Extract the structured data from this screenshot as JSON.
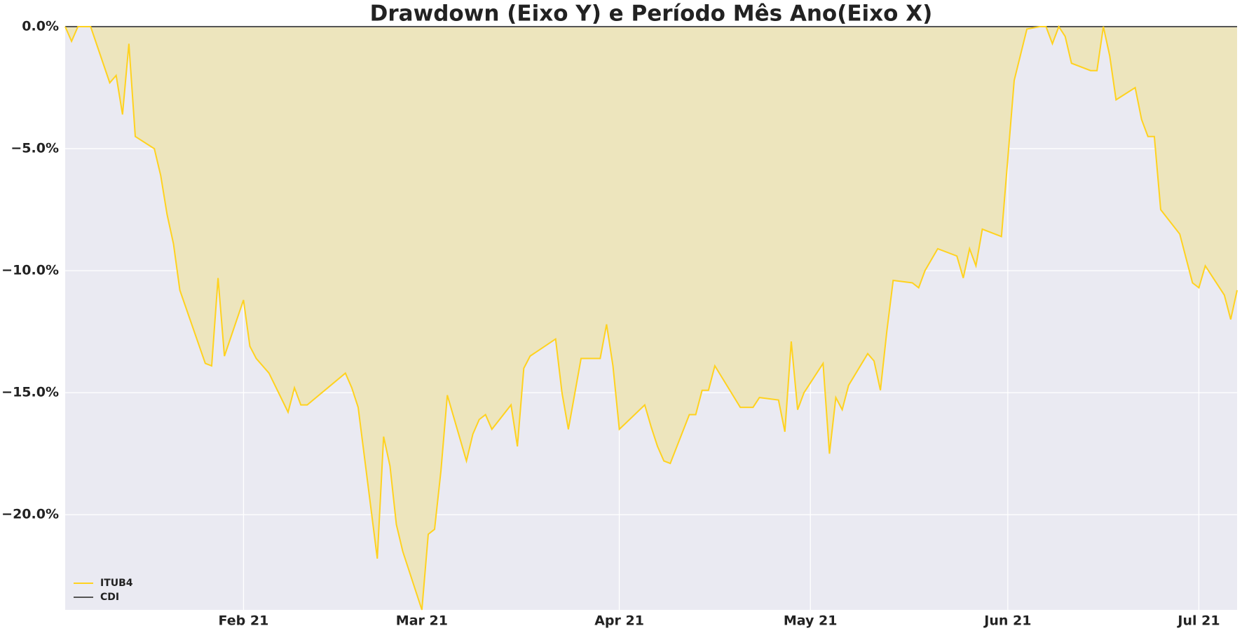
{
  "chart_data": {
    "type": "line",
    "title": "Drawdown (Eixo Y) e Período Mês Ano(Eixo X)",
    "x": [
      4,
      5,
      6,
      8,
      11,
      12,
      13,
      14,
      15,
      18,
      19,
      20,
      21,
      22,
      26,
      27,
      28,
      29,
      32,
      33,
      34,
      36,
      39,
      40,
      41,
      42,
      48,
      49,
      50,
      53,
      54,
      55,
      56,
      57,
      60,
      61,
      62,
      63,
      64,
      67,
      68,
      69,
      70,
      71,
      74,
      75,
      76,
      77,
      81,
      82,
      83,
      85,
      88,
      89,
      90,
      91,
      95,
      96,
      97,
      98,
      99,
      102,
      103,
      104,
      105,
      106,
      110,
      112,
      113,
      116,
      117,
      118,
      119,
      120,
      123,
      124,
      125,
      126,
      127,
      130,
      131,
      132,
      133,
      134,
      137,
      138,
      139,
      141,
      144,
      145,
      146,
      147,
      148,
      151,
      153,
      155,
      157,
      158,
      159,
      160,
      161,
      162,
      165,
      166,
      167,
      168,
      169,
      172,
      173,
      174,
      175,
      176,
      179,
      180,
      181,
      182,
      183,
      186,
      187,
      188
    ],
    "series": [
      {
        "name": "ITUB4",
        "color": "#ffd21f",
        "fill": "#ede5bd",
        "values": [
          0,
          -0.6,
          0,
          0,
          -2.3,
          -2,
          -3.6,
          -0.7,
          -4.5,
          -5,
          -6.1,
          -7.7,
          -8.9,
          -10.8,
          -13.8,
          -13.9,
          -10.3,
          -13.5,
          -11.2,
          -13.1,
          -13.6,
          -14.2,
          -15.8,
          -14.8,
          -15.5,
          -15.5,
          -14.2,
          -14.8,
          -15.6,
          -21.8,
          -16.8,
          -18,
          -20.4,
          -21.5,
          -23.9,
          -20.8,
          -20.6,
          -18.2,
          -15.1,
          -17.8,
          -16.7,
          -16.1,
          -15.9,
          -16.5,
          -15.5,
          -17.2,
          -14,
          -13.5,
          -12.8,
          -15,
          -16.5,
          -13.6,
          -13.6,
          -12.2,
          -13.9,
          -16.5,
          -15.5,
          -16.4,
          -17.2,
          -17.8,
          -17.9,
          -15.9,
          -15.9,
          -14.9,
          -14.9,
          -13.9,
          -15.6,
          -15.6,
          -15.2,
          -15.3,
          -16.6,
          -12.9,
          -15.7,
          -15,
          -13.8,
          -17.5,
          -15.2,
          -15.7,
          -14.7,
          -13.4,
          -13.7,
          -14.9,
          -12.5,
          -10.4,
          -10.5,
          -10.7,
          -10,
          -9.1,
          -9.4,
          -10.3,
          -9.1,
          -9.8,
          -8.3,
          -8.6,
          -2.2,
          -0.1,
          0,
          0,
          -0.7,
          0,
          -0.4,
          -1.5,
          -1.8,
          -1.8,
          0,
          -1.2,
          -3,
          -2.5,
          -3.8,
          -4.5,
          -4.5,
          -7.5,
          -8.5,
          -9.5,
          -10.5,
          -10.7,
          -9.8,
          -11,
          -12,
          -10.8
        ]
      },
      {
        "name": "CDI",
        "color": "#555555",
        "values": [
          0,
          0,
          0,
          0,
          0,
          0,
          0,
          0,
          0,
          0,
          0,
          0,
          0,
          0,
          0,
          0,
          0,
          0,
          0,
          0,
          0,
          0,
          0,
          0,
          0,
          0,
          0,
          0,
          0,
          0,
          0,
          0,
          0,
          0,
          0,
          0,
          0,
          0,
          0,
          0,
          0,
          0,
          0,
          0,
          0,
          0,
          0,
          0,
          0,
          0,
          0,
          0,
          0,
          0,
          0,
          0,
          0,
          0,
          0,
          0,
          0,
          0,
          0,
          0,
          0,
          0,
          0,
          0,
          0,
          0,
          0,
          0,
          0,
          0,
          0,
          0,
          0,
          0,
          0,
          0,
          0,
          0,
          0,
          0,
          0,
          0,
          0,
          0,
          0,
          0,
          0,
          0,
          0,
          0,
          0,
          0,
          0,
          0,
          0,
          0,
          0,
          0,
          0,
          0,
          0,
          0,
          0,
          0,
          0,
          0,
          0,
          0,
          0,
          0,
          0,
          0,
          0,
          0,
          0,
          0
        ]
      }
    ],
    "xlim": [
      4,
      188
    ],
    "xticks": [
      {
        "value": 32,
        "label": "Feb 21"
      },
      {
        "value": 60,
        "label": "Mar 21"
      },
      {
        "value": 91,
        "label": "Apr 21"
      },
      {
        "value": 121,
        "label": "May 21"
      },
      {
        "value": 152,
        "label": "Jun 21"
      },
      {
        "value": 182,
        "label": "Jul 21"
      }
    ],
    "ylim": [
      -23.9,
      0
    ],
    "yticks": [
      {
        "value": 0,
        "label": "0.0%"
      },
      {
        "value": -5,
        "label": "−5.0%"
      },
      {
        "value": -10,
        "label": "−10.0%"
      },
      {
        "value": -15,
        "label": "−15.0%"
      },
      {
        "value": -20,
        "label": "−20.0%"
      }
    ],
    "grid": true,
    "legend": "lower left"
  }
}
